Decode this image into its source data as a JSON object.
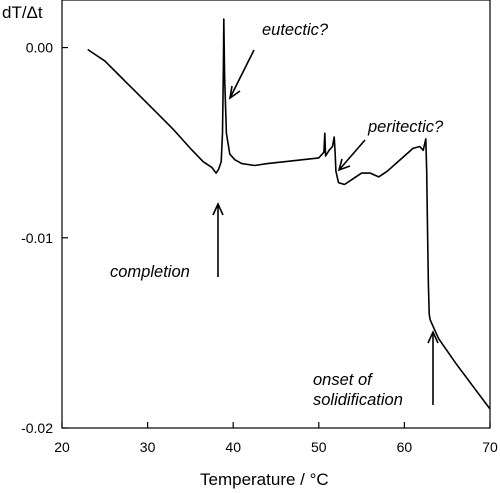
{
  "chart_data": {
    "type": "line",
    "title": "",
    "xlabel": "Temperature / °C",
    "ylabel": "dT/Δt",
    "xlim": [
      20,
      70
    ],
    "ylim": [
      -0.02,
      0.002
    ],
    "x_ticks": [
      20,
      30,
      40,
      50,
      60,
      70
    ],
    "x_tick_labels": [
      "20",
      "30",
      "40",
      "50",
      "60",
      "70"
    ],
    "y_ticks": [
      0.0,
      -0.01,
      -0.02
    ],
    "y_tick_labels": [
      "0.00",
      "-0.01",
      "-0.02"
    ],
    "grid": false,
    "legend": "none",
    "line_color": "#000000",
    "series": [
      {
        "x": [
          23.0,
          25.0,
          27.0,
          29.0,
          31.0,
          33.0,
          35.0,
          36.5,
          37.5,
          38.0,
          38.3,
          38.6,
          38.75,
          38.85,
          38.9,
          39.0,
          39.2,
          39.6,
          40.2,
          41.0,
          42.5,
          44.0,
          46.0,
          48.0,
          50.0,
          50.6,
          50.7,
          50.8,
          51.2,
          51.6,
          51.8,
          51.9,
          52.0,
          52.3,
          53.0,
          54.0,
          55.0,
          56.0,
          57.0,
          58.0,
          59.0,
          60.0,
          61.0,
          61.8,
          62.2,
          62.5,
          62.6,
          62.7,
          62.8,
          62.9,
          63.0,
          63.3,
          64.0,
          66.0,
          68.0,
          70.0
        ],
        "y": [
          -0.0001,
          -0.0007,
          -0.0016,
          -0.0025,
          -0.0034,
          -0.0043,
          -0.0053,
          -0.006,
          -0.0063,
          -0.0066,
          -0.0064,
          -0.006,
          -0.0045,
          -0.001,
          0.0015,
          -0.0015,
          -0.0045,
          -0.0056,
          -0.0059,
          -0.0061,
          -0.0062,
          -0.0061,
          -0.006,
          -0.0059,
          -0.0058,
          -0.0055,
          -0.0045,
          -0.0057,
          -0.0054,
          -0.0052,
          -0.0047,
          -0.0055,
          -0.0065,
          -0.0071,
          -0.0072,
          -0.0069,
          -0.0066,
          -0.0066,
          -0.0068,
          -0.0065,
          -0.0061,
          -0.0057,
          -0.0053,
          -0.0052,
          -0.0054,
          -0.0048,
          -0.0065,
          -0.0095,
          -0.0125,
          -0.014,
          -0.0143,
          -0.0146,
          -0.0153,
          -0.0166,
          -0.0178,
          -0.019
        ]
      }
    ],
    "annotations": [
      {
        "text": "eutectic?",
        "x": 39.0,
        "y": 0.0013
      },
      {
        "text": "peritectic?",
        "x": 51.5,
        "y": -0.0047
      },
      {
        "text": "completion",
        "x": 38.0,
        "y": -0.0068
      },
      {
        "text": "onset of",
        "x": 63.4,
        "y": -0.0143
      },
      {
        "text": "solidification",
        "x": 63.4,
        "y": -0.0143
      }
    ]
  }
}
